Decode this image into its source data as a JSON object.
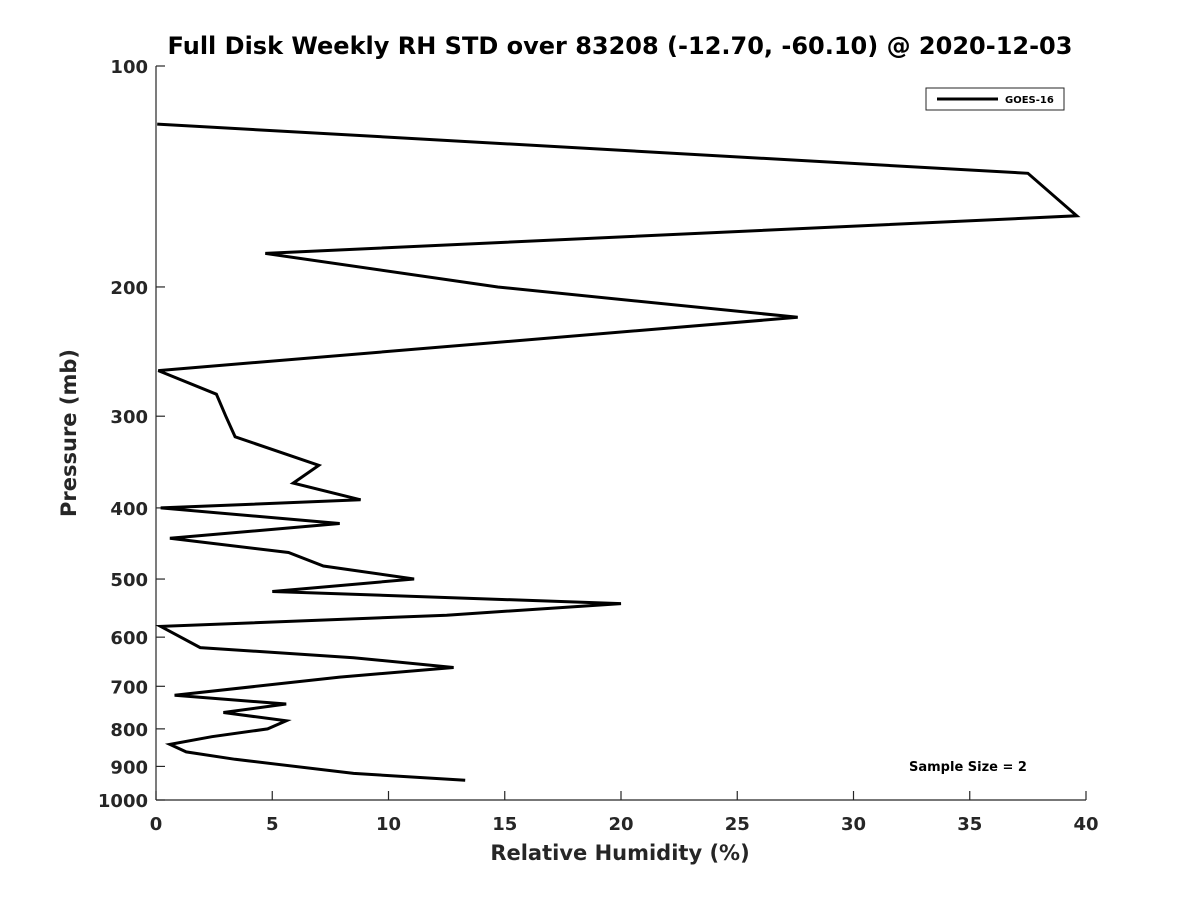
{
  "chart_data": {
    "type": "line",
    "title": "Full Disk Weekly RH STD over 83208 (-12.70, -60.10) @ 2020-12-03",
    "xlabel": "Relative Humidity (%)",
    "ylabel": "Pressure (mb)",
    "xlim": [
      0,
      40
    ],
    "ylim": [
      100,
      1000
    ],
    "y_scale": "log",
    "y_reversed": true,
    "x_ticks": [
      "0",
      "5",
      "10",
      "15",
      "20",
      "25",
      "30",
      "35",
      "40"
    ],
    "y_ticks": [
      "100",
      "200",
      "300",
      "400",
      "500",
      "600",
      "700",
      "800",
      "900",
      "1000"
    ],
    "grid": false,
    "legend_position": "top-right",
    "annotation": "Sample Size = 2",
    "series": [
      {
        "name": "GOES-16",
        "color": "#000000",
        "points": [
          [
            0.05,
            120
          ],
          [
            37.5,
            140
          ],
          [
            39.6,
            160
          ],
          [
            4.7,
            180
          ],
          [
            14.7,
            200
          ],
          [
            27.6,
            220
          ],
          [
            0.1,
            260
          ],
          [
            2.6,
            280
          ],
          [
            3.0,
            300
          ],
          [
            3.4,
            320
          ],
          [
            7.0,
            350
          ],
          [
            5.9,
            370
          ],
          [
            8.8,
            390
          ],
          [
            0.2,
            400
          ],
          [
            7.9,
            420
          ],
          [
            0.6,
            440
          ],
          [
            5.7,
            460
          ],
          [
            7.2,
            480
          ],
          [
            11.1,
            500
          ],
          [
            5.0,
            520
          ],
          [
            20.0,
            540
          ],
          [
            12.5,
            560
          ],
          [
            0.2,
            580
          ],
          [
            1.9,
            620
          ],
          [
            8.5,
            640
          ],
          [
            12.8,
            660
          ],
          [
            7.9,
            680
          ],
          [
            0.8,
            720
          ],
          [
            5.6,
            740
          ],
          [
            2.9,
            760
          ],
          [
            5.6,
            780
          ],
          [
            4.8,
            800
          ],
          [
            2.4,
            820
          ],
          [
            0.6,
            840
          ],
          [
            1.3,
            860
          ],
          [
            3.4,
            880
          ],
          [
            8.5,
            920
          ],
          [
            13.3,
            940
          ]
        ]
      }
    ]
  }
}
